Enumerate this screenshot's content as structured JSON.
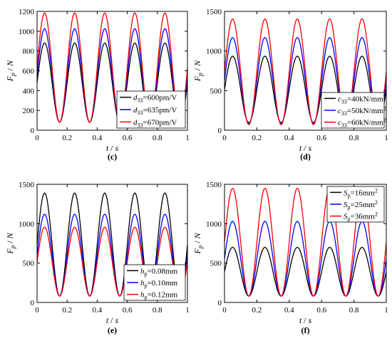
{
  "panels": [
    {
      "label": "(c)",
      "chart_data": {
        "type": "line",
        "xlabel": "t / s",
        "ylabel": "F_p / N",
        "xlim": [
          0,
          1
        ],
        "ylim": [
          0,
          1200
        ],
        "xticks": [
          "0",
          "0.2",
          "0.4",
          "0.6",
          "0.8",
          "1"
        ],
        "yticks": [
          "0",
          "200",
          "400",
          "600",
          "800",
          "1000",
          "1200"
        ],
        "grid": false,
        "legend_position": "bottom-right",
        "waveform": {
          "period": 0.2,
          "peak_at": 0.05,
          "trough_at": 0.15,
          "x_step": 0.005
        },
        "series": [
          {
            "name": "d33=600pm/V",
            "legend_var": "d",
            "legend_sub": "33",
            "legend_rest": "=600pm/V",
            "color": "#000000",
            "max": 880,
            "min": 80
          },
          {
            "name": "d33=635pm/V",
            "legend_var": "d",
            "legend_sub": "33",
            "legend_rest": "=635pm/V",
            "color": "#0000ff",
            "max": 1025,
            "min": 80
          },
          {
            "name": "d33=670pm/V",
            "legend_var": "d",
            "legend_sub": "33",
            "legend_rest": "=670pm/V",
            "color": "#ff0000",
            "max": 1185,
            "min": 80
          }
        ]
      }
    },
    {
      "label": "(d)",
      "chart_data": {
        "type": "line",
        "xlabel": "t / s",
        "ylabel": "F_p / N",
        "xlim": [
          0,
          1
        ],
        "ylim": [
          0,
          1500
        ],
        "xticks": [
          "0",
          "0.2",
          "0.4",
          "0.6",
          "0.8",
          "1"
        ],
        "yticks": [
          "0",
          "500",
          "1000",
          "1500"
        ],
        "grid": false,
        "legend_position": "bottom-right",
        "waveform": {
          "period": 0.2,
          "peak_at": 0.05,
          "trough_at": 0.15,
          "x_step": 0.005
        },
        "series": [
          {
            "name": "c33=40kN/mm2",
            "legend_var": "c",
            "legend_sub": "33",
            "legend_rest": "=40kN/mm",
            "legend_sup": "2",
            "color": "#000000",
            "max": 935,
            "min": 95
          },
          {
            "name": "c33=50kN/mm2",
            "legend_var": "c",
            "legend_sub": "33",
            "legend_rest": "=50kN/mm",
            "legend_sup": "2",
            "color": "#0000ff",
            "max": 1170,
            "min": 85
          },
          {
            "name": "c33=60kN/mm2",
            "legend_var": "c",
            "legend_sub": "33",
            "legend_rest": "=60kN/mm",
            "legend_sup": "2",
            "color": "#ff0000",
            "max": 1405,
            "min": 70
          }
        ]
      }
    },
    {
      "label": "(e)",
      "chart_data": {
        "type": "line",
        "xlabel": "t / s",
        "ylabel": "F_p / N",
        "xlim": [
          0,
          1
        ],
        "ylim": [
          0,
          1500
        ],
        "xticks": [
          "0",
          "0.2",
          "0.4",
          "0.6",
          "0.8",
          "1"
        ],
        "yticks": [
          "0",
          "500",
          "1000",
          "1500"
        ],
        "grid": false,
        "legend_position": "bottom-right",
        "waveform": {
          "period": 0.2,
          "peak_at": 0.05,
          "trough_at": 0.15,
          "x_step": 0.005
        },
        "series": [
          {
            "name": "hp=0.08mm",
            "legend_var": "h",
            "legend_sub": "p",
            "legend_rest": "=0.08mm",
            "color": "#000000",
            "max": 1390,
            "min": 80
          },
          {
            "name": "hp=0.10mm",
            "legend_var": "h",
            "legend_sub": "p",
            "legend_rest": "=0.10mm",
            "color": "#0000ff",
            "max": 1120,
            "min": 80
          },
          {
            "name": "hp=0.12mm",
            "legend_var": "h",
            "legend_sub": "p",
            "legend_rest": "=0.12mm",
            "color": "#ff0000",
            "max": 955,
            "min": 80
          }
        ]
      }
    },
    {
      "label": "(f)",
      "chart_data": {
        "type": "line",
        "xlabel": "t / s",
        "ylabel": "F_p / N",
        "xlim": [
          0,
          1
        ],
        "ylim": [
          0,
          1500
        ],
        "xticks": [
          "0",
          "0.2",
          "0.4",
          "0.6",
          "0.8",
          "1"
        ],
        "yticks": [
          "0",
          "500",
          "1000",
          "1500"
        ],
        "grid": false,
        "legend_position": "top-right",
        "waveform": {
          "period": 0.2,
          "peak_at": 0.05,
          "trough_at": 0.15,
          "x_step": 0.005
        },
        "series": [
          {
            "name": "Sp=16mm2",
            "legend_var": "S",
            "legend_sub": "p",
            "legend_rest": "=16mm",
            "legend_sup": "2",
            "color": "#000000",
            "max": 700,
            "min": 80
          },
          {
            "name": "Sp=25mm2",
            "legend_var": "S",
            "legend_sub": "p",
            "legend_rest": "=25mm",
            "legend_sup": "2",
            "color": "#0000ff",
            "max": 1030,
            "min": 80
          },
          {
            "name": "Sp=36mm2",
            "legend_var": "S",
            "legend_sub": "p",
            "legend_rest": "=36mm",
            "legend_sup": "2",
            "color": "#ff0000",
            "max": 1450,
            "min": 80
          }
        ]
      }
    }
  ]
}
